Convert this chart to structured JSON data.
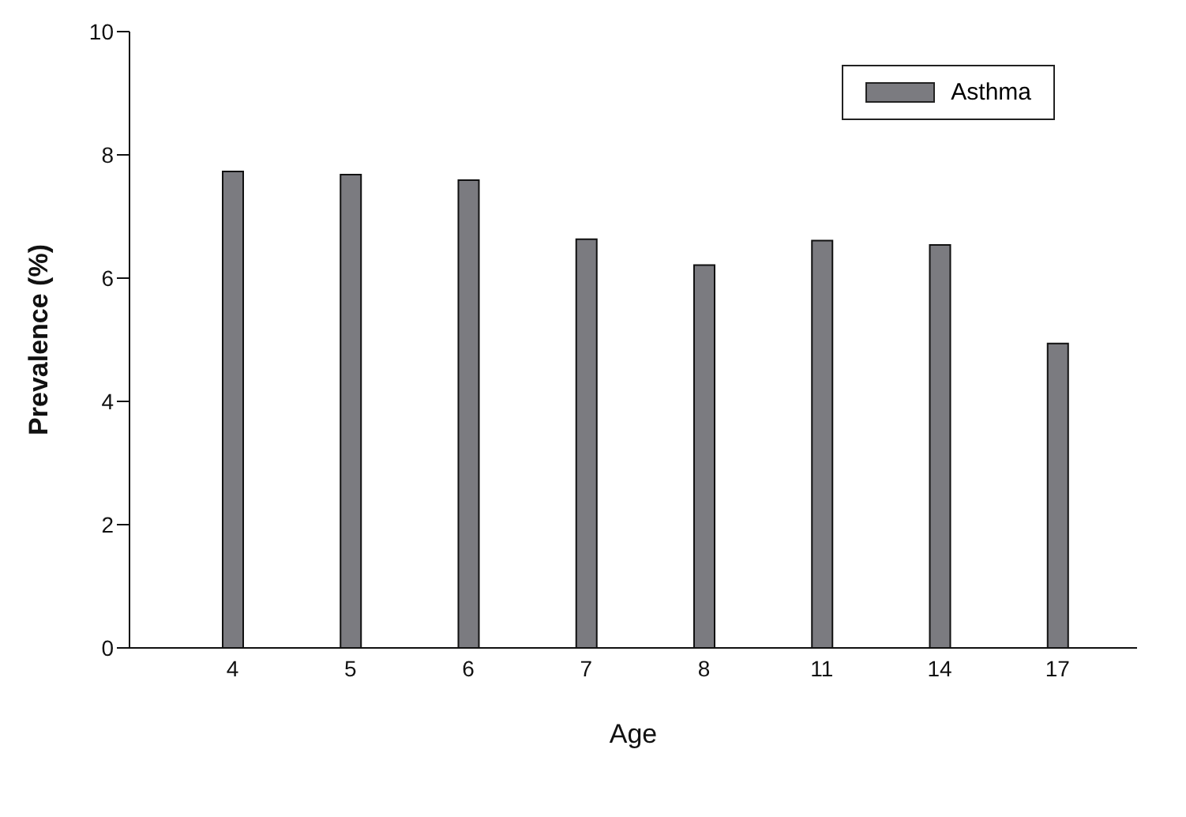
{
  "chart_data": {
    "type": "bar",
    "xlabel": "Age",
    "ylabel": "Prevalence (%)",
    "categories": [
      "4",
      "5",
      "6",
      "7",
      "8",
      "11",
      "14",
      "17"
    ],
    "series": [
      {
        "name": "Asthma",
        "color": "#7b7b80",
        "values": [
          7.73,
          7.68,
          7.59,
          6.63,
          6.21,
          6.61,
          6.54,
          4.94
        ]
      }
    ],
    "ylim": [
      0,
      10
    ],
    "yticks": [
      0,
      2,
      4,
      6,
      8,
      10
    ],
    "grid": false,
    "legend": "top right"
  }
}
